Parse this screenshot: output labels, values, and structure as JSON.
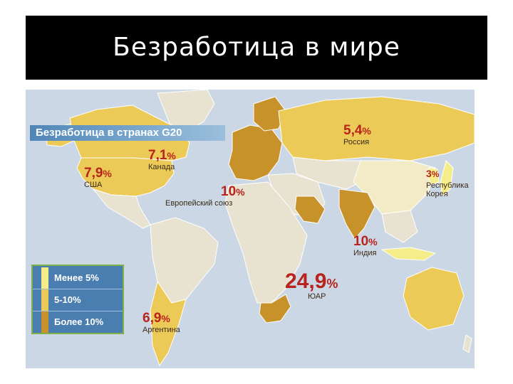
{
  "slide_title": "Безработица в мире",
  "map_header": "Безработица в странах G20",
  "colors": {
    "low": "#f5ec8a",
    "mid": "#ecca57",
    "high": "#c8922b",
    "other": "#e8e2d0",
    "water": "#cbd7e4",
    "value_text": "#b8231c"
  },
  "legend": [
    {
      "label": "Менее 5%",
      "category": "low",
      "color": "#f5ec8a"
    },
    {
      "label": "5-10%",
      "category": "mid",
      "color": "#ecca57"
    },
    {
      "label": "Более 10%",
      "category": "high",
      "color": "#c8922b"
    }
  ],
  "countries": {
    "usa": {
      "value": "7,9",
      "unit": "%",
      "name": "США",
      "category": "mid"
    },
    "canada": {
      "value": "7,1",
      "unit": "%",
      "name": "Канада",
      "category": "mid"
    },
    "eu": {
      "value": "10",
      "unit": "%",
      "name": "Европейский союз",
      "category": "high"
    },
    "russia": {
      "value": "5,4",
      "unit": "%",
      "name": "Россия",
      "category": "mid"
    },
    "korea": {
      "value": "3",
      "unit": "%",
      "name": "Республика\nКорея",
      "name_line1": "Республика",
      "name_line2": "Корея",
      "category": "low"
    },
    "india": {
      "value": "10",
      "unit": "%",
      "name": "Индия",
      "category": "high"
    },
    "south_africa": {
      "value": "24,9",
      "unit": "%",
      "name": "ЮАР",
      "category": "high"
    },
    "argentina": {
      "value": "6,9",
      "unit": "%",
      "name": "Аргентина",
      "category": "mid"
    }
  }
}
